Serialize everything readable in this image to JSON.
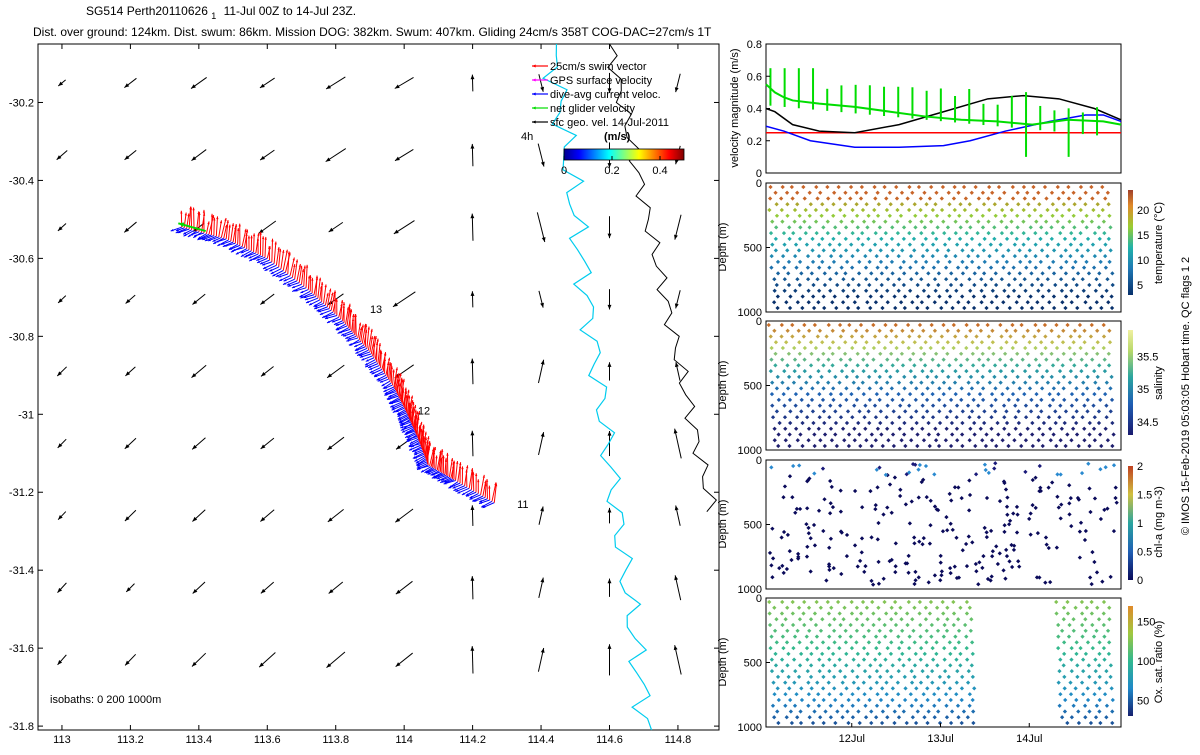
{
  "header": {
    "title": "SG514 Perth20110626",
    "title_subscript": "1",
    "title_range": "11-Jul 00Z to 14-Jul 23Z.",
    "stats": "Dist. over ground: 124km. Dist. swum: 86km. Mission DOG: 382km. Swum: 407km. Gliding 24cm/s 358T COG-DAC=27cm/s 1T"
  },
  "footer": {
    "credit": "© IMOS 15-Feb-2019 05:03:05 Hobart time. QC flags 1  2"
  },
  "colors": {
    "swim": "#ff0000",
    "gps": "#ff00ff",
    "dac": "#0000ff",
    "net": "#00dd00",
    "sfc": "#000000",
    "coast": "#00ccee",
    "isobath": "#000000"
  },
  "chart_data": [
    {
      "type": "map",
      "name": "trajectory",
      "xlim": [
        112.93,
        114.92
      ],
      "ylim": [
        -31.81,
        -30.05
      ],
      "x_ticks": [
        "113",
        "113.2",
        "113.4",
        "113.6",
        "113.8",
        "114",
        "114.2",
        "114.4",
        "114.6",
        "114.8"
      ],
      "x_tick_values": [
        113,
        113.2,
        113.4,
        113.6,
        113.8,
        114,
        114.2,
        114.4,
        114.6,
        114.8
      ],
      "y_ticks": [
        "-30.2",
        "-30.4",
        "-30.6",
        "-30.8",
        "-31",
        "-31.2",
        "-31.4",
        "-31.6",
        "-31.8"
      ],
      "y_tick_values": [
        -30.2,
        -30.4,
        -30.6,
        -30.8,
        -31,
        -31.2,
        -31.4,
        -31.6,
        -31.8
      ],
      "legend": {
        "position": "top-right",
        "entries": [
          {
            "label": "25cm/s swim vector",
            "color": "#ff0000"
          },
          {
            "label": "GPS surface velocity",
            "color": "#ff00ff"
          },
          {
            "label": "dive-avg current veloc.",
            "color": "#0000ff"
          },
          {
            "label": "net glider velocity",
            "color": "#00dd00"
          },
          {
            "label": "sfc geo. vel. 14-Jul-2011",
            "color": "#000000"
          }
        ],
        "time_label": "4h"
      },
      "colorbar": {
        "label": "(m/s)",
        "range": [
          0,
          0.5
        ],
        "tick_labels": [
          "0",
          "0.2",
          "0.4"
        ],
        "tick_values": [
          0,
          0.2,
          0.4
        ]
      },
      "isobaths_label": "isobaths: 0   200  1000m",
      "day_labels": [
        {
          "text": "13",
          "lon": 113.9,
          "lat": -30.74
        },
        {
          "text": "12",
          "lon": 114.04,
          "lat": -31.0
        },
        {
          "text": "11",
          "lon": 114.33,
          "lat": -31.24
        }
      ],
      "track": [
        [
          113.35,
          -30.52
        ],
        [
          113.48,
          -30.55
        ],
        [
          113.6,
          -30.6
        ],
        [
          113.72,
          -30.68
        ],
        [
          113.82,
          -30.76
        ],
        [
          113.9,
          -30.84
        ],
        [
          113.97,
          -30.93
        ],
        [
          114.01,
          -31.0
        ],
        [
          114.04,
          -31.06
        ],
        [
          114.07,
          -31.13
        ],
        [
          114.15,
          -31.17
        ],
        [
          114.27,
          -31.23
        ]
      ]
    },
    {
      "type": "line",
      "name": "velocity-magnitude",
      "ylabel": "velocity magnitude (m/s)",
      "xlim": [
        0,
        4
      ],
      "ylim": [
        0,
        0.8
      ],
      "y_ticks": [
        "0",
        "0.2",
        "0.4",
        "0.6",
        "0.8"
      ],
      "y_tick_values": [
        0,
        0.2,
        0.4,
        0.6,
        0.8
      ],
      "series": [
        {
          "color": "#ff0000",
          "x": [
            0,
            4
          ],
          "y": [
            0.25,
            0.25
          ]
        },
        {
          "color": "#000000",
          "x": [
            0,
            0.1,
            0.3,
            0.6,
            1.0,
            1.5,
            2.0,
            2.5,
            2.9,
            3.3,
            3.7,
            4.0
          ],
          "y": [
            0.4,
            0.38,
            0.3,
            0.26,
            0.25,
            0.3,
            0.38,
            0.46,
            0.48,
            0.46,
            0.4,
            0.33
          ]
        },
        {
          "color": "#0000ff",
          "x": [
            0,
            0.2,
            0.5,
            1.0,
            1.5,
            2.0,
            2.3,
            2.7,
            3.2,
            3.6,
            3.8,
            4.0
          ],
          "y": [
            0.29,
            0.26,
            0.2,
            0.16,
            0.16,
            0.17,
            0.2,
            0.26,
            0.32,
            0.36,
            0.36,
            0.32
          ]
        },
        {
          "color": "#00dd00",
          "x": [
            0,
            0.1,
            0.2,
            0.3,
            0.6,
            1.0,
            1.4,
            1.8,
            2.2,
            2.6,
            3.0,
            3.4,
            3.8,
            4.0
          ],
          "y": [
            0.55,
            0.5,
            0.47,
            0.45,
            0.43,
            0.41,
            0.38,
            0.35,
            0.33,
            0.32,
            0.3,
            0.33,
            0.32,
            0.3
          ]
        }
      ]
    },
    {
      "type": "scatter",
      "name": "temperature",
      "ylabel": "Depth (m)",
      "colorbar_label": "temperature (°C)",
      "colorbar_ticks": [
        "5",
        "10",
        "15",
        "20"
      ],
      "colorbar_tick_values": [
        5,
        10,
        15,
        20
      ],
      "clim": [
        3,
        24
      ],
      "y_ticks": [
        "0",
        "500",
        "1000"
      ],
      "y_tick_values": [
        0,
        500,
        1000
      ],
      "ylim": [
        1000,
        0
      ],
      "profiles": 30
    },
    {
      "type": "scatter",
      "name": "salinity",
      "ylabel": "Depth (m)",
      "colorbar_label": "salinity",
      "colorbar_ticks": [
        "34.5",
        "35",
        "35.5"
      ],
      "colorbar_tick_values": [
        34.5,
        35,
        35.5
      ],
      "clim": [
        34.3,
        35.9
      ],
      "y_ticks": [
        "0",
        "500",
        "1000"
      ],
      "y_tick_values": [
        0,
        500,
        1000
      ],
      "ylim": [
        1000,
        0
      ],
      "profiles": 30
    },
    {
      "type": "scatter",
      "name": "chlorophyll",
      "ylabel": "Depth (m)",
      "colorbar_label": "chl-a (mg m-3)",
      "colorbar_ticks": [
        "0",
        "0.5",
        "1",
        "1.5",
        "2"
      ],
      "colorbar_tick_values": [
        0,
        0.5,
        1,
        1.5,
        2
      ],
      "clim": [
        0,
        2
      ],
      "y_ticks": [
        "0",
        "500",
        "1000"
      ],
      "y_tick_values": [
        0,
        500,
        1000
      ],
      "ylim": [
        1000,
        0
      ]
    },
    {
      "type": "scatter",
      "name": "oxygen",
      "ylabel": "Depth (m)",
      "colorbar_label": "Ox. sat. ratio (%)",
      "colorbar_ticks": [
        "50",
        "100",
        "150"
      ],
      "colorbar_tick_values": [
        50,
        100,
        150
      ],
      "clim": [
        30,
        170
      ],
      "y_ticks": [
        "0",
        "500",
        "1000"
      ],
      "y_tick_values": [
        0,
        500,
        1000
      ],
      "ylim": [
        1000,
        0
      ],
      "x_ticks": [
        "12Jul",
        "13Jul",
        "14Jul"
      ],
      "x_tick_values": [
        1,
        2,
        3
      ]
    }
  ]
}
